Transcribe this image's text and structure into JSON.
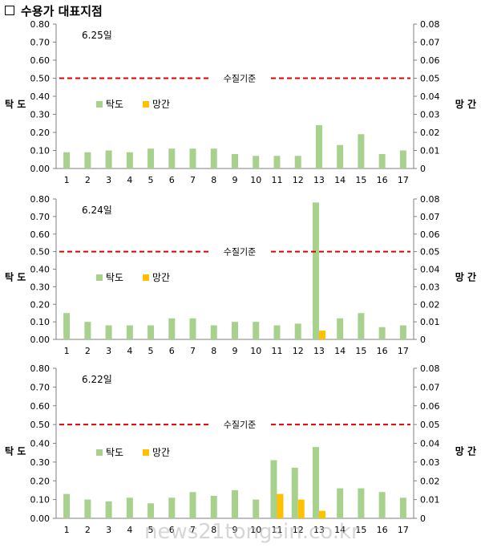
{
  "page": {
    "title": "수용가 대표지점",
    "watermark": "news21tongsin.co.kr"
  },
  "colors": {
    "turbidity": "#a9d18e",
    "manganese": "#ffc000",
    "standard_line": "#e00000",
    "axis": "#7f7f7f"
  },
  "chart_data": [
    {
      "type": "bar",
      "date_label": "6.25일",
      "categories": [
        "1",
        "2",
        "3",
        "4",
        "5",
        "6",
        "7",
        "8",
        "9",
        "10",
        "11",
        "12",
        "13",
        "14",
        "15",
        "16",
        "17"
      ],
      "ylabel_left": "탁 도",
      "ylabel_right": "망 간",
      "ylim_left": [
        0,
        0.8
      ],
      "ylim_right": [
        0,
        0.08
      ],
      "yticks_left": [
        "0.00",
        "0.10",
        "0.20",
        "0.30",
        "0.40",
        "0.50",
        "0.60",
        "0.70",
        "0.80"
      ],
      "yticks_right": [
        "0",
        "0.01",
        "0.02",
        "0.03",
        "0.04",
        "0.05",
        "0.06",
        "0.07",
        "0.08"
      ],
      "standard": {
        "label": "수질기준",
        "value": 0.5
      },
      "legend_position": "left, mid-height",
      "series": [
        {
          "name": "탁도",
          "axis": "left",
          "values": [
            0.09,
            0.09,
            0.1,
            0.09,
            0.11,
            0.11,
            0.11,
            0.11,
            0.08,
            0.07,
            0.07,
            0.07,
            0.24,
            0.13,
            0.19,
            0.08,
            0.1
          ]
        },
        {
          "name": "망간",
          "axis": "right",
          "values": [
            0,
            0,
            0,
            0,
            0,
            0,
            0,
            0,
            0,
            0,
            0,
            0,
            0,
            0,
            0,
            0,
            0
          ]
        }
      ]
    },
    {
      "type": "bar",
      "date_label": "6.24일",
      "categories": [
        "1",
        "2",
        "3",
        "4",
        "5",
        "6",
        "7",
        "8",
        "9",
        "10",
        "11",
        "12",
        "13",
        "14",
        "15",
        "16",
        "17"
      ],
      "ylabel_left": "탁 도",
      "ylabel_right": "망 간",
      "ylim_left": [
        0,
        0.8
      ],
      "ylim_right": [
        0,
        0.08
      ],
      "yticks_left": [
        "0.00",
        "0.10",
        "0.20",
        "0.30",
        "0.40",
        "0.50",
        "0.60",
        "0.70",
        "0.80"
      ],
      "yticks_right": [
        "0",
        "0.01",
        "0.02",
        "0.03",
        "0.04",
        "0.05",
        "0.06",
        "0.07",
        "0.08"
      ],
      "standard": {
        "label": "수질기준",
        "value": 0.5
      },
      "legend_position": "left, mid-height",
      "series": [
        {
          "name": "탁도",
          "axis": "left",
          "values": [
            0.15,
            0.1,
            0.08,
            0.08,
            0.08,
            0.12,
            0.12,
            0.08,
            0.1,
            0.1,
            0.08,
            0.09,
            0.78,
            0.12,
            0.15,
            0.07,
            0.08
          ]
        },
        {
          "name": "망간",
          "axis": "right",
          "values": [
            0,
            0,
            0,
            0,
            0,
            0,
            0,
            0,
            0,
            0,
            0,
            0,
            0.005,
            0,
            0,
            0,
            0
          ]
        }
      ]
    },
    {
      "type": "bar",
      "date_label": "6.22일",
      "categories": [
        "1",
        "2",
        "3",
        "4",
        "5",
        "6",
        "7",
        "8",
        "9",
        "10",
        "11",
        "12",
        "13",
        "14",
        "15",
        "16",
        "17"
      ],
      "ylabel_left": "탁 도",
      "ylabel_right": "망 간",
      "ylim_left": [
        0,
        0.8
      ],
      "ylim_right": [
        0,
        0.08
      ],
      "yticks_left": [
        "0.00",
        "0.10",
        "0.20",
        "0.30",
        "0.40",
        "0.50",
        "0.60",
        "0.70",
        "0.80"
      ],
      "yticks_right": [
        "0",
        "0.01",
        "0.02",
        "0.03",
        "0.04",
        "0.05",
        "0.06",
        "0.07",
        "0.08"
      ],
      "standard": {
        "label": "수질기준",
        "value": 0.5
      },
      "legend_position": "left, mid-height",
      "series": [
        {
          "name": "탁도",
          "axis": "left",
          "values": [
            0.13,
            0.1,
            0.09,
            0.11,
            0.08,
            0.11,
            0.14,
            0.12,
            0.15,
            0.1,
            0.31,
            0.27,
            0.38,
            0.16,
            0.16,
            0.14,
            0.11
          ]
        },
        {
          "name": "망간",
          "axis": "right",
          "values": [
            0,
            0,
            0,
            0,
            0,
            0,
            0,
            0,
            0,
            0,
            0.013,
            0.01,
            0.004,
            0,
            0,
            0,
            0
          ]
        }
      ]
    }
  ]
}
